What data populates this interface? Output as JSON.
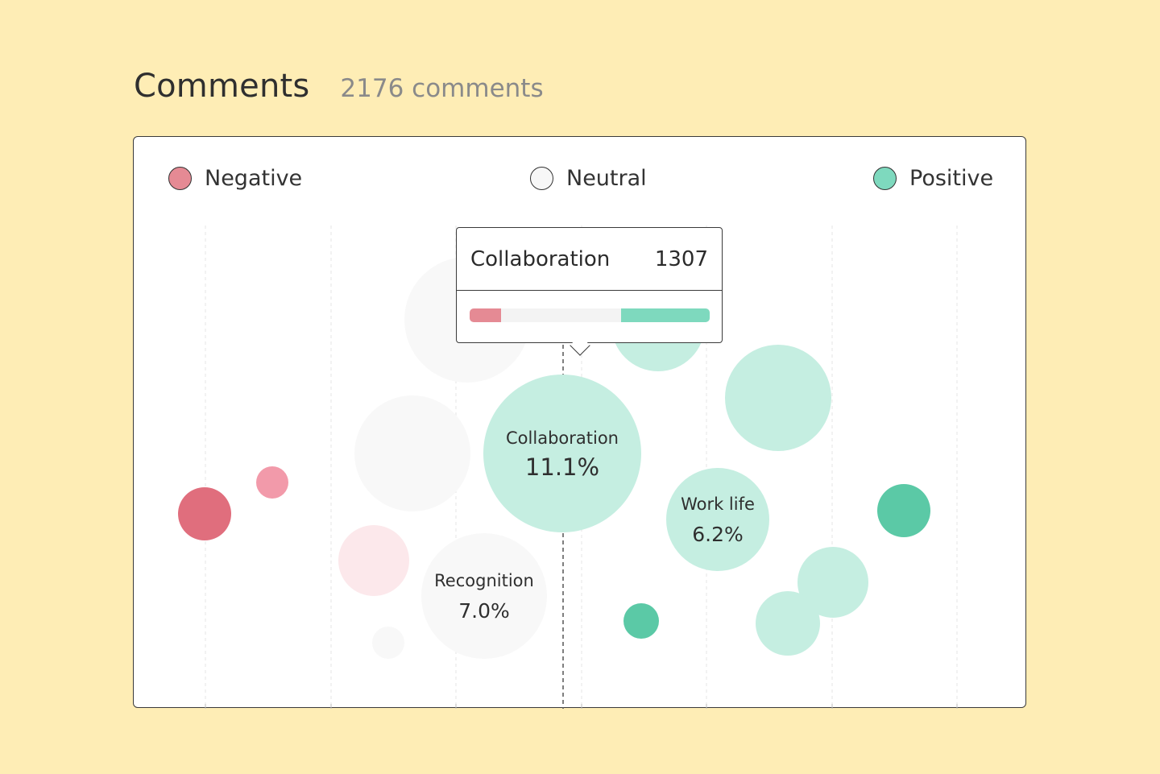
{
  "header": {
    "title": "Comments",
    "count_label": "2176 comments"
  },
  "legend": [
    {
      "label": "Negative",
      "color": "#E58A94"
    },
    {
      "label": "Neutral",
      "color": "#F7F7F7"
    },
    {
      "label": "Positive",
      "color": "#7ED9BE"
    }
  ],
  "tooltip": {
    "label": "Collaboration",
    "value": "1307",
    "negative_share": 0.13,
    "neutral_share": 0.5,
    "positive_share": 0.37
  },
  "chart_data": {
    "type": "scatter",
    "title": "",
    "xlabel": "",
    "ylabel": "",
    "legend_placement": "top",
    "grid": true,
    "bubbles": [
      {
        "sentiment": "negative",
        "size": 33,
        "color": "#E06E7D",
        "label": "",
        "value": ""
      },
      {
        "sentiment": "negative",
        "size": 20,
        "color": "#F29AAA",
        "label": "",
        "value": ""
      },
      {
        "sentiment": "neutral",
        "size": 78,
        "color": "#F8F8F8",
        "label": "",
        "value": ""
      },
      {
        "sentiment": "neutral",
        "size": 72,
        "color": "#F8F8F8",
        "label": "",
        "value": ""
      },
      {
        "sentiment": "negative",
        "size": 44,
        "color": "#FCE8EB",
        "label": "",
        "value": ""
      },
      {
        "sentiment": "neutral",
        "size": 20,
        "color": "#F8F8F8",
        "label": "",
        "value": ""
      },
      {
        "sentiment": "neutral",
        "size": 78,
        "color": "#F8F8F8",
        "label": "Recognition",
        "value": "7.0%"
      },
      {
        "sentiment": "positive",
        "size": 98,
        "color": "#C5EEE1",
        "label": "Collaboration",
        "value": "11.1%"
      },
      {
        "sentiment": "positive",
        "size": 58,
        "color": "#C5EEE1",
        "label": "",
        "value": ""
      },
      {
        "sentiment": "positive",
        "size": 66,
        "color": "#C5EEE1",
        "label": "",
        "value": ""
      },
      {
        "sentiment": "positive",
        "size": 64,
        "color": "#C5EEE1",
        "label": "Work life",
        "value": "6.2%"
      },
      {
        "sentiment": "positive",
        "size": 44,
        "color": "#C5EEE1",
        "label": "",
        "value": ""
      },
      {
        "sentiment": "positive",
        "size": 40,
        "color": "#C5EEE1",
        "label": "",
        "value": ""
      },
      {
        "sentiment": "positive",
        "size": 22,
        "color": "#5BC9A6",
        "label": "",
        "value": ""
      },
      {
        "sentiment": "positive",
        "size": 33,
        "color": "#5BC9A6",
        "label": "",
        "value": ""
      }
    ]
  }
}
